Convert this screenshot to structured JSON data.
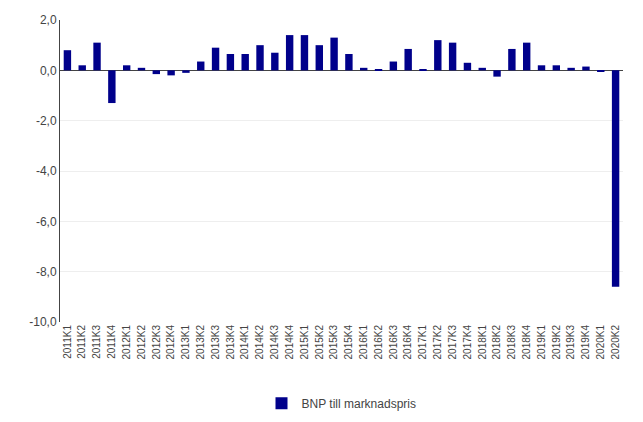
{
  "chart_data": {
    "type": "bar",
    "categories": [
      "2011K1",
      "2011K2",
      "2011K3",
      "2011K4",
      "2012K1",
      "2012K2",
      "2012K3",
      "2012K4",
      "2013K1",
      "2013K2",
      "2013K3",
      "2013K4",
      "2014K1",
      "2014K2",
      "2014K3",
      "2014K4",
      "2015K1",
      "2015K2",
      "2015K3",
      "2015K4",
      "2016K1",
      "2016K2",
      "2016K3",
      "2016K4",
      "2017K1",
      "2017K2",
      "2017K3",
      "2017K4",
      "2018K1",
      "2018K2",
      "2018K3",
      "2018K4",
      "2019K1",
      "2019K2",
      "2019K3",
      "2019K4",
      "2020K1",
      "2020K2"
    ],
    "series": [
      {
        "name": "BNP till marknadspris",
        "color": "#00008B",
        "values": [
          0.8,
          0.2,
          1.1,
          -1.3,
          0.2,
          0.1,
          -0.15,
          -0.2,
          -0.1,
          0.35,
          0.9,
          0.65,
          0.65,
          1.0,
          0.7,
          1.4,
          1.4,
          1.0,
          1.3,
          0.65,
          0.1,
          0.05,
          0.35,
          0.85,
          0.05,
          1.2,
          1.1,
          0.3,
          0.1,
          -0.25,
          0.85,
          1.1,
          0.2,
          0.2,
          0.1,
          0.15,
          -0.05,
          -8.6
        ]
      }
    ],
    "ylim": [
      -10.0,
      2.0
    ],
    "yticks": [
      {
        "value": -10.0,
        "label": "-10,0"
      },
      {
        "value": -8.0,
        "label": "-8,0"
      },
      {
        "value": -6.0,
        "label": "-6,0"
      },
      {
        "value": -4.0,
        "label": "-4,0"
      },
      {
        "value": -2.0,
        "label": "-2,0"
      },
      {
        "value": 0.0,
        "label": "0,0"
      },
      {
        "value": 2.0,
        "label": "2,0"
      }
    ],
    "grid": true,
    "legend": "bottom"
  }
}
